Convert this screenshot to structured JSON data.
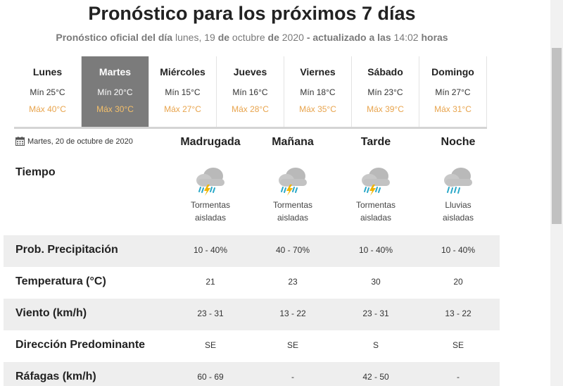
{
  "header": {
    "title": "Pronóstico para los próximos 7 días",
    "sub_a": "Pronóstico oficial del día",
    "sub_b": " lunes, 19 ",
    "sub_c": "de",
    "sub_d": " octubre ",
    "sub_e": "de",
    "sub_f": " 2020 ",
    "sub_g": "- actualizado a las",
    "sub_h": " 14:02 ",
    "sub_i": "horas"
  },
  "days": [
    {
      "name": "Lunes",
      "min": "Mín 25°C",
      "max": "Máx 40°C"
    },
    {
      "name": "Martes",
      "min": "Mín 20°C",
      "max": "Máx 30°C"
    },
    {
      "name": "Miércoles",
      "min": "Mín 15°C",
      "max": "Máx 27°C"
    },
    {
      "name": "Jueves",
      "min": "Mín 16°C",
      "max": "Máx 28°C"
    },
    {
      "name": "Viernes",
      "min": "Mín 18°C",
      "max": "Máx 35°C"
    },
    {
      "name": "Sábado",
      "min": "Mín 23°C",
      "max": "Máx 39°C"
    },
    {
      "name": "Domingo",
      "min": "Mín 27°C",
      "max": "Máx 31°C"
    }
  ],
  "selected_day": "Martes",
  "detail": {
    "date_label": "Martes, 20 de octubre de 2020",
    "periods": [
      "Madrugada",
      "Mañana",
      "Tarde",
      "Noche"
    ],
    "tiempo_label": "Tiempo",
    "weather": [
      {
        "icon": "storm-cloud-icon",
        "desc": "Tormentas aisladas"
      },
      {
        "icon": "storm-cloud-icon",
        "desc": "Tormentas aisladas"
      },
      {
        "icon": "storm-cloud-icon",
        "desc": "Tormentas aisladas"
      },
      {
        "icon": "rain-cloud-icon",
        "desc": "Lluvias aisladas"
      }
    ],
    "rows": [
      {
        "label": "Prob. Precipitación",
        "values": [
          "10 - 40%",
          "40 - 70%",
          "10 - 40%",
          "10 - 40%"
        ]
      },
      {
        "label": "Temperatura (°C)",
        "values": [
          "21",
          "23",
          "30",
          "20"
        ]
      },
      {
        "label": "Viento (km/h)",
        "values": [
          "23 - 31",
          "13 - 22",
          "23 - 31",
          "13 - 22"
        ]
      },
      {
        "label": "Dirección Predominante",
        "values": [
          "SE",
          "SE",
          "S",
          "SE"
        ]
      },
      {
        "label": "Ráfagas (km/h)",
        "values": [
          "60 - 69",
          "-",
          "42 - 50",
          "-"
        ]
      }
    ]
  },
  "colors": {
    "max_temp": "#e8a44d",
    "selected_day_bg": "#7b7b7b",
    "row_shade": "#eeeeee",
    "lightning": "#f0b400",
    "rain": "#2aa8c8"
  }
}
